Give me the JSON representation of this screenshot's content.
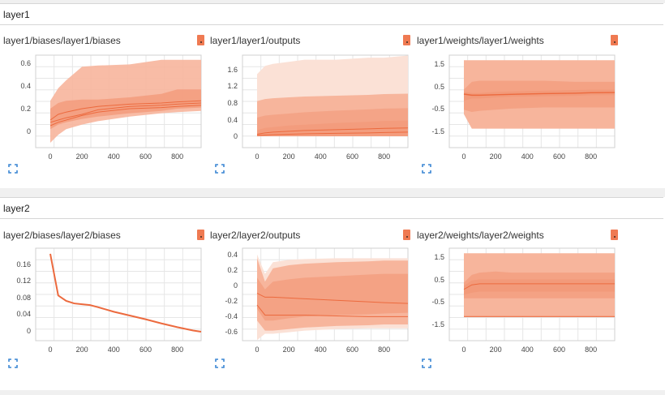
{
  "sections": [
    {
      "name": "layer1",
      "cards": [
        {
          "title": "layer1/biases/layer1/biases",
          "xticks": [
            "0",
            "200",
            "400",
            "600",
            "800"
          ],
          "yticks": [
            "0.6",
            "0.4",
            "0.2",
            "0"
          ],
          "type": "histogram",
          "bands": [
            [
              0.25,
              0.62,
              0.63,
              0.64
            ],
            [
              -0.1,
              0.02,
              0.08,
              0.18
            ],
            [
              0.05,
              0.28,
              0.32,
              0.38
            ],
            [
              -0.02,
              0.06,
              0.12,
              0.17
            ]
          ],
          "lines": [
            [
              0.08,
              0.22,
              0.24,
              0.27
            ],
            [
              0.05,
              0.18,
              0.2,
              0.22
            ],
            [
              0.1,
              0.21,
              0.23,
              0.25
            ]
          ]
        },
        {
          "title": "layer1/layer1/outputs",
          "xticks": [
            "0",
            "200",
            "400",
            "600",
            "800"
          ],
          "yticks": [
            "1.6",
            "1.2",
            "0.8",
            "0.4",
            "0"
          ],
          "type": "histogram"
        },
        {
          "title": "layer1/weights/layer1/weights",
          "xticks": [
            "0",
            "200",
            "400",
            "600",
            "800"
          ],
          "yticks": [
            "1.5",
            "0.5",
            "-0.5",
            "-1.5"
          ],
          "type": "histogram"
        }
      ]
    },
    {
      "name": "layer2",
      "cards": [
        {
          "title": "layer2/biases/layer2/biases",
          "xticks": [
            "0",
            "200",
            "400",
            "600",
            "800"
          ],
          "yticks": [
            "0.16",
            "0.12",
            "0.08",
            "0.04",
            "0"
          ],
          "type": "line"
        },
        {
          "title": "layer2/layer2/outputs",
          "xticks": [
            "0",
            "200",
            "400",
            "600",
            "800"
          ],
          "yticks": [
            "0.4",
            "0.2",
            "0",
            "-0.2",
            "-0.4",
            "-0.6"
          ],
          "type": "histogram"
        },
        {
          "title": "layer2/weights/layer2/weights",
          "xticks": [
            "0",
            "200",
            "400",
            "600",
            "800"
          ],
          "yticks": [
            "1.5",
            "0.5",
            "-0.5",
            "-1.5"
          ],
          "type": "histogram"
        }
      ]
    }
  ],
  "colors": {
    "band_light": "#fbe1d6",
    "band_mid": "#f7b59c",
    "band_dark": "#f29a7a",
    "line": "#ec6a3e",
    "badge": "#ef7a52",
    "expand_icon": "#3a86d4"
  }
}
